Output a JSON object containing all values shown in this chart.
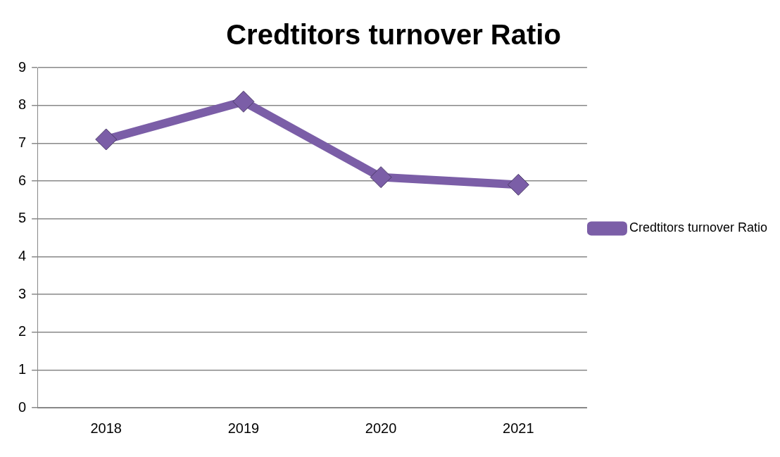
{
  "chart_data": {
    "type": "line",
    "title": "Credtitors turnover Ratio",
    "categories": [
      "2018",
      "2019",
      "2020",
      "2021"
    ],
    "series": [
      {
        "name": "Credtitors turnover Ratio",
        "color": "#7b5ea7",
        "values": [
          7.1,
          8.1,
          6.1,
          5.9
        ]
      }
    ],
    "ylim": [
      0,
      9
    ],
    "yticks": [
      0,
      1,
      2,
      3,
      4,
      5,
      6,
      7,
      8,
      9
    ],
    "grid": "y",
    "legend": "right",
    "marker": "diamond",
    "line_style": "solid"
  }
}
